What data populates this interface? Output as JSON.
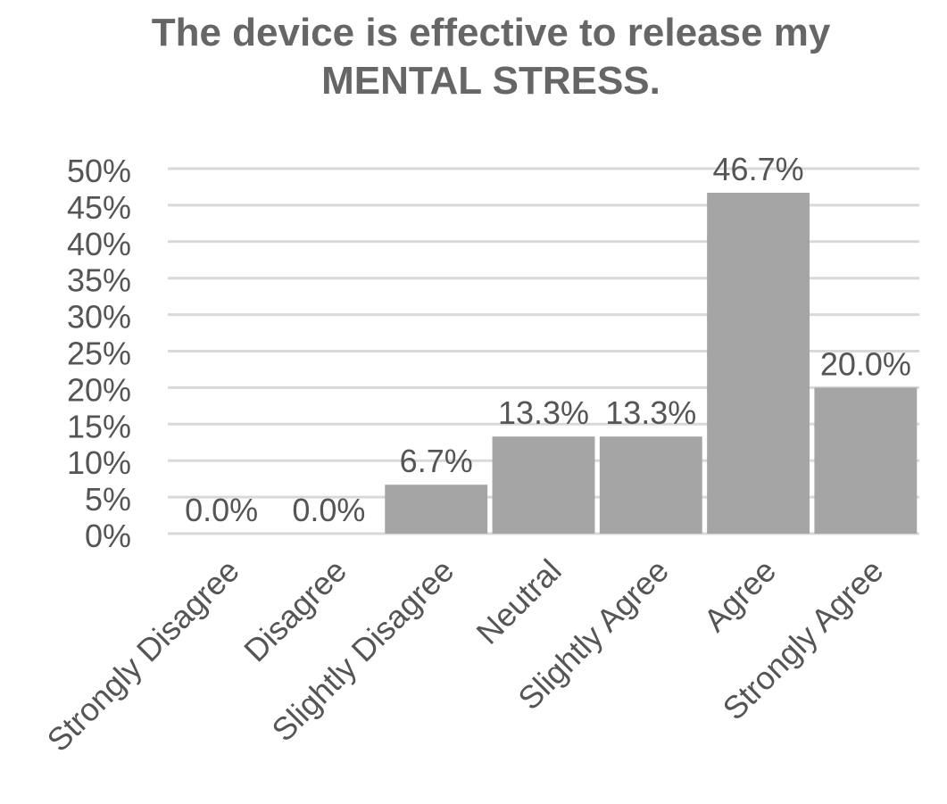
{
  "chart_data": {
    "type": "bar",
    "title_lines": [
      "The device is effective to release my",
      "MENTAL STRESS."
    ],
    "categories": [
      "Strongly Disagree",
      "Disagree",
      "Slightly Disagree",
      "Neutral",
      "Slightly Agree",
      "Agree",
      "Strongly Agree"
    ],
    "values": [
      0.0,
      0.0,
      6.7,
      13.3,
      13.3,
      46.7,
      20.0
    ],
    "data_labels": [
      "0.0%",
      "0.0%",
      "6.7%",
      "13.3%",
      "13.3%",
      "46.7%",
      "20.0%"
    ],
    "y_ticks": [
      "0%",
      "5%",
      "10%",
      "15%",
      "20%",
      "25%",
      "30%",
      "35%",
      "40%",
      "45%",
      "50%"
    ],
    "ylim": [
      0,
      50
    ],
    "xlabel": "",
    "ylabel": "",
    "grid": true,
    "legend": "none",
    "bar_color": "#a5a5a5",
    "grid_color": "#d9d9d9",
    "text_color": "#555555",
    "title_color": "#666666"
  }
}
